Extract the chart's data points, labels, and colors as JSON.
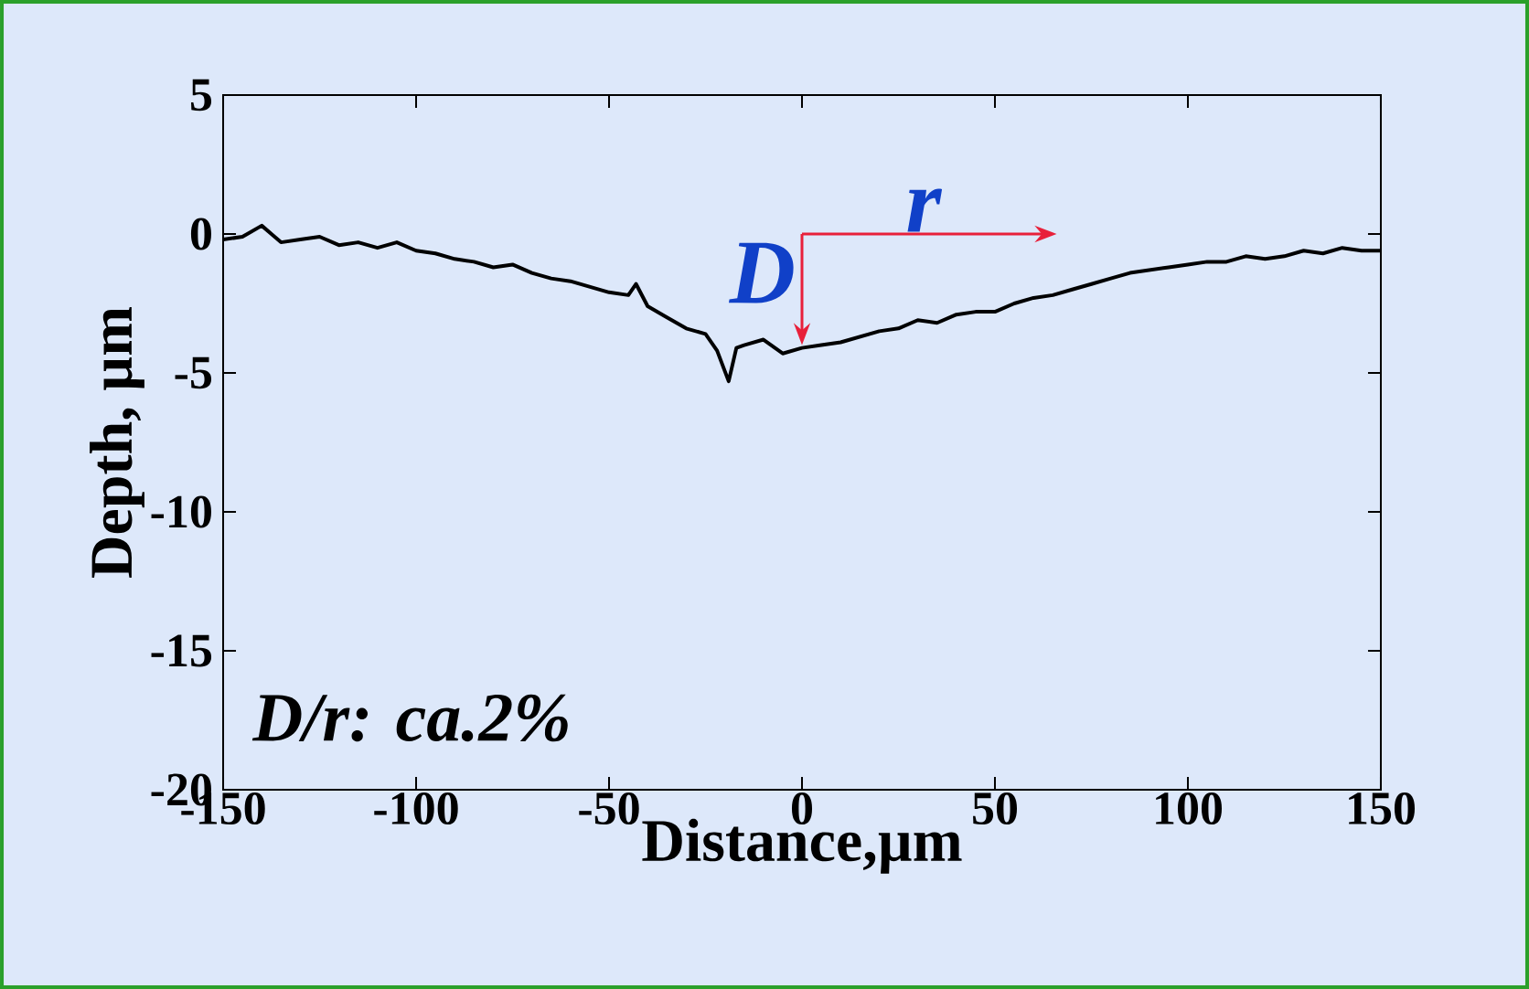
{
  "chart_data": {
    "type": "line",
    "xlabel": "Distance,µm",
    "ylabel": "Depth, µm",
    "x": [
      -150,
      -145,
      -140,
      -135,
      -130,
      -125,
      -120,
      -115,
      -110,
      -105,
      -100,
      -95,
      -90,
      -85,
      -80,
      -75,
      -70,
      -65,
      -60,
      -55,
      -50,
      -45,
      -43,
      -40,
      -35,
      -30,
      -25,
      -22,
      -19,
      -17,
      -15,
      -10,
      -5,
      0,
      5,
      10,
      15,
      20,
      25,
      30,
      35,
      40,
      45,
      50,
      55,
      60,
      65,
      70,
      75,
      80,
      85,
      90,
      95,
      100,
      105,
      110,
      115,
      120,
      125,
      130,
      135,
      140,
      145,
      150
    ],
    "series": [
      {
        "color": "#000000",
        "values": [
          -0.2,
          -0.1,
          0.3,
          -0.3,
          -0.2,
          -0.1,
          -0.4,
          -0.3,
          -0.5,
          -0.3,
          -0.6,
          -0.7,
          -0.9,
          -1.0,
          -1.2,
          -1.1,
          -1.4,
          -1.6,
          -1.7,
          -1.9,
          -2.1,
          -2.2,
          -1.8,
          -2.6,
          -3.0,
          -3.4,
          -3.6,
          -4.2,
          -5.3,
          -4.1,
          -4.0,
          -3.8,
          -4.3,
          -4.1,
          -4.0,
          -3.9,
          -3.7,
          -3.5,
          -3.4,
          -3.1,
          -3.2,
          -2.9,
          -2.8,
          -2.8,
          -2.5,
          -2.3,
          -2.2,
          -2.0,
          -1.8,
          -1.6,
          -1.4,
          -1.3,
          -1.2,
          -1.1,
          -1.0,
          -1.0,
          -0.8,
          -0.9,
          -0.8,
          -0.6,
          -0.7,
          -0.5,
          -0.6,
          -0.6
        ]
      }
    ],
    "xlim": [
      -150,
      150
    ],
    "xticks": [
      -150,
      -100,
      -50,
      0,
      50,
      100,
      150
    ],
    "ylim": [
      -20,
      5
    ],
    "yticks": [
      -20,
      -15,
      -10,
      -5,
      0,
      5
    ],
    "grid": false,
    "annotations": [
      {
        "text": "D",
        "x": 0,
        "y": -4
      },
      "r",
      "D/r: ca.2%"
    ]
  }
}
